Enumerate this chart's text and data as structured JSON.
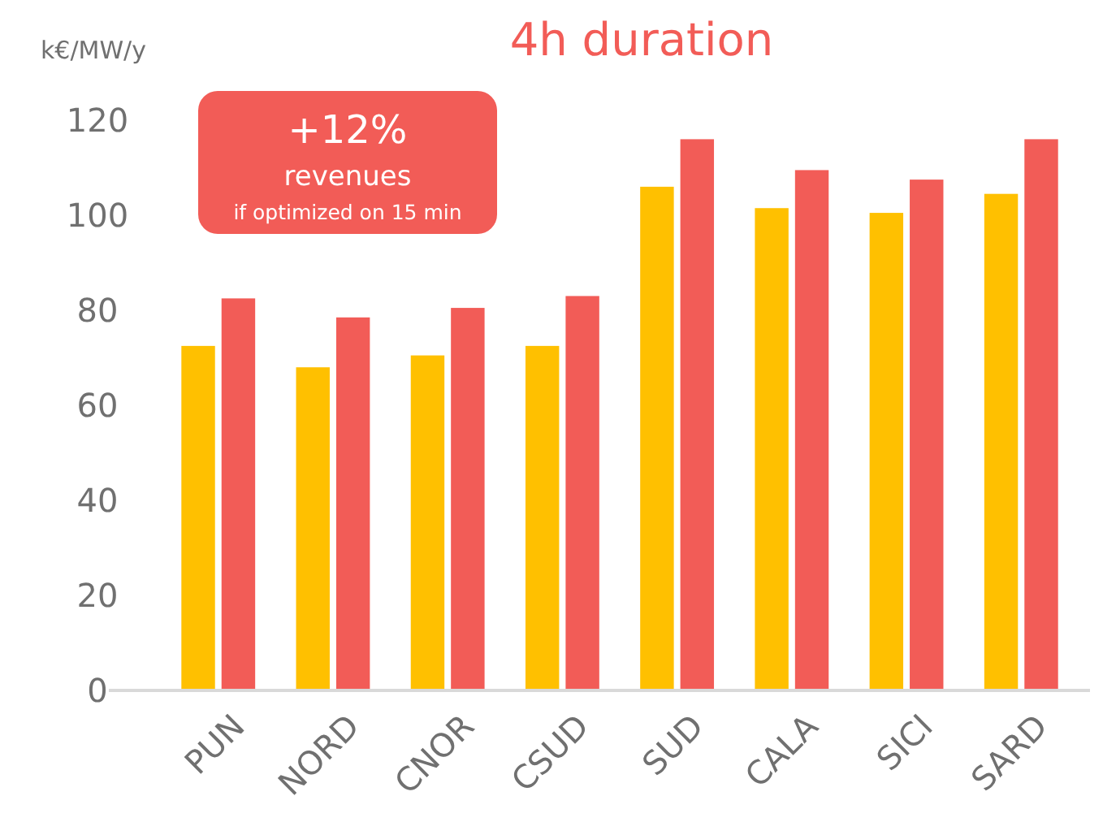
{
  "chart_data": {
    "type": "bar",
    "title": "4h duration",
    "ylabel": "k€/MW/y",
    "categories": [
      "PUN",
      "NORD",
      "CNOR",
      "CSUD",
      "SUD",
      "CALA",
      "SICI",
      "SARD"
    ],
    "series": [
      {
        "color": "#ffc000",
        "values": [
          72.5,
          68,
          70.5,
          72.5,
          106,
          101.5,
          100.5,
          104.5
        ]
      },
      {
        "color": "#f25c57",
        "values": [
          82.5,
          78.5,
          80.5,
          83,
          116,
          109.5,
          107.5,
          116
        ]
      }
    ],
    "ylim": [
      0,
      120
    ],
    "yticks": [
      0,
      20,
      40,
      60,
      80,
      100,
      120
    ],
    "grid": false,
    "annotations": [
      "+12%",
      "revenues",
      "if optimized on 15 min"
    ]
  }
}
